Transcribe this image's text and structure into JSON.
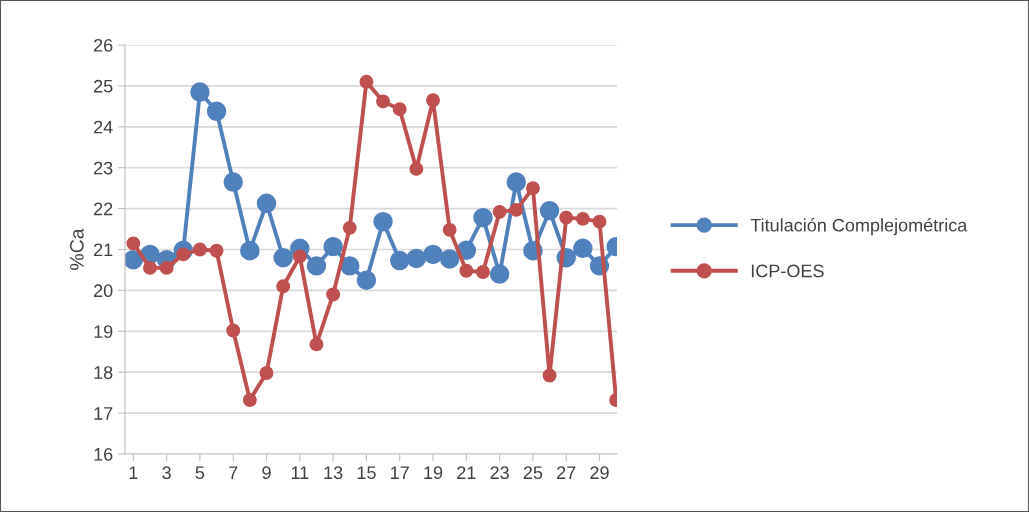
{
  "chart_data": {
    "type": "line",
    "ylabel": "%Ca",
    "categories": [
      "1",
      null,
      "3",
      null,
      "5",
      null,
      "7",
      null,
      "9",
      null,
      "11",
      null,
      "13",
      null,
      "15",
      null,
      "17",
      null,
      "19",
      null,
      "21",
      null,
      "23",
      null,
      "25",
      null,
      "27",
      null,
      "29",
      null
    ],
    "series": [
      {
        "name": "Titulación Complejométrica",
        "color": "#4f81bd",
        "values": [
          20.75,
          20.88,
          20.75,
          20.98,
          24.85,
          24.38,
          22.65,
          20.97,
          22.13,
          20.8,
          21.03,
          20.6,
          21.07,
          20.6,
          20.25,
          21.68,
          20.73,
          20.78,
          20.88,
          20.77,
          20.98,
          21.78,
          20.4,
          22.65,
          20.97,
          21.95,
          20.8,
          21.03,
          20.6,
          21.07
        ]
      },
      {
        "name": "ICP-OES",
        "color": "#c0504d",
        "values": [
          21.15,
          20.55,
          20.55,
          20.88,
          21.0,
          20.97,
          19.02,
          17.32,
          17.98,
          20.1,
          20.83,
          18.68,
          19.9,
          21.53,
          25.1,
          24.62,
          24.43,
          22.97,
          24.65,
          21.48,
          20.48,
          20.45,
          21.92,
          21.97,
          22.5,
          17.92,
          21.78,
          21.75,
          21.68,
          17.32
        ]
      }
    ],
    "ylim": [
      16,
      26
    ],
    "yticks": [
      16,
      17,
      18,
      19,
      20,
      21,
      22,
      23,
      24,
      25,
      26
    ],
    "grid": "y",
    "legend": "right",
    "marker": "circle",
    "line_style": "solid"
  }
}
